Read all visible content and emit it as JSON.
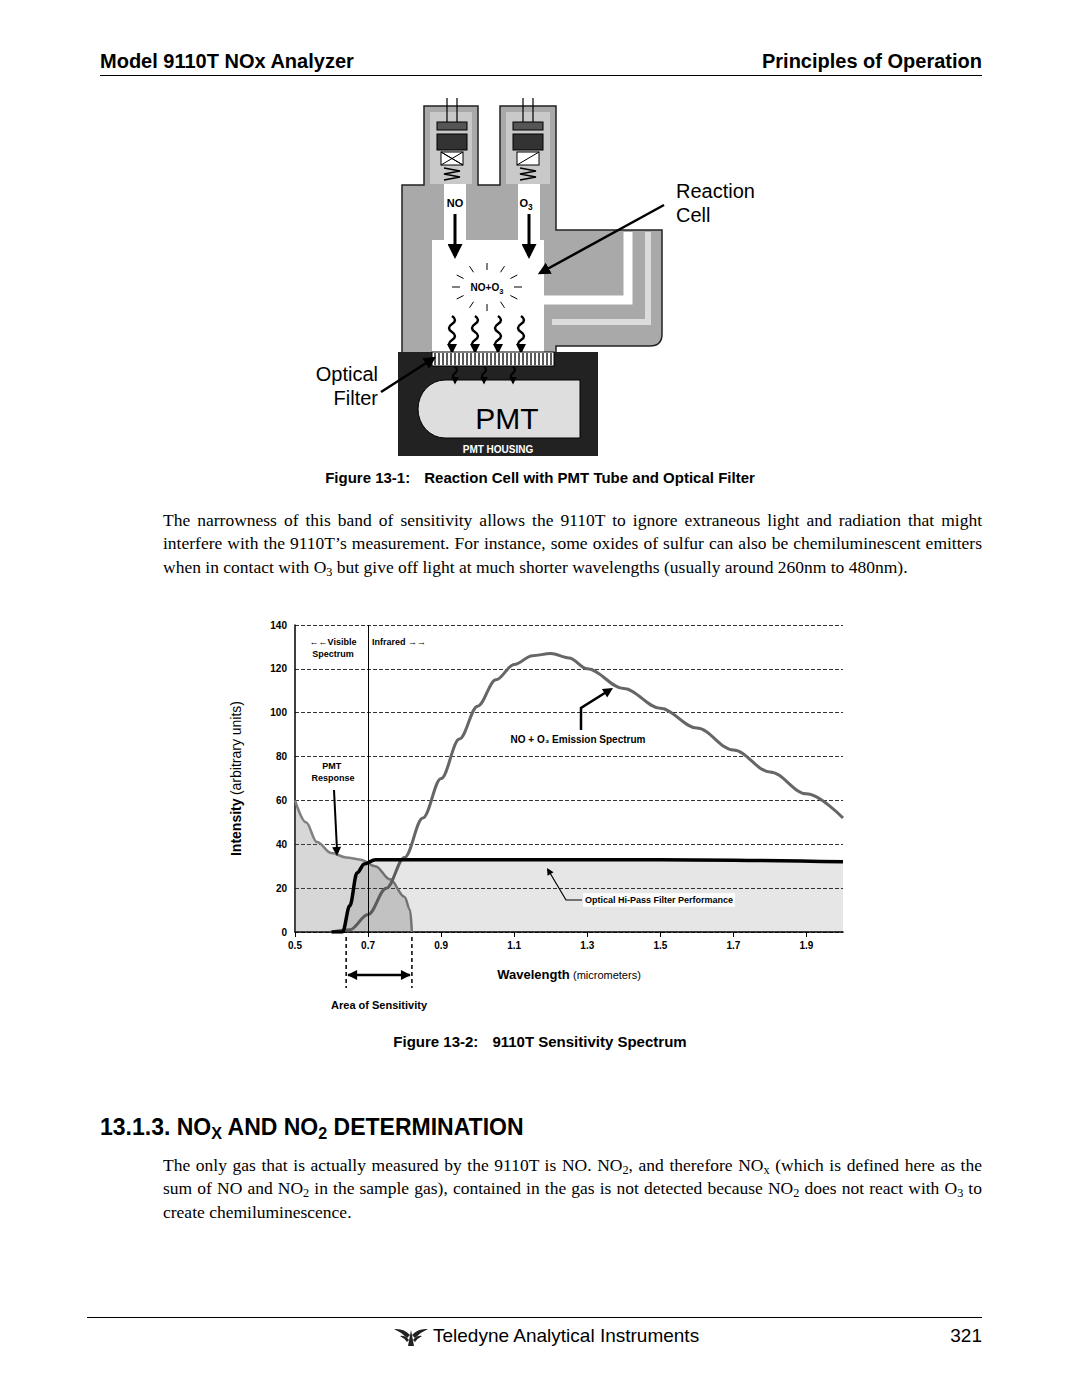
{
  "header": {
    "left": "Model 9110T NOx Analyzer",
    "right": "Principles of Operation"
  },
  "figure1": {
    "labels": {
      "no": [
        "NO"
      ],
      "o3": [
        "O",
        {
          "sub": "3"
        }
      ],
      "mix": [
        "NO+O",
        {
          "sub": "3"
        }
      ],
      "reaction_cell": [
        "Reaction",
        "Cell"
      ],
      "optical_filter": [
        "Optical",
        "Filter"
      ],
      "pmt": "PMT",
      "pmt_housing": "PMT HOUSING"
    },
    "caption": {
      "label": "Figure 13-1:",
      "text": "Reaction Cell with PMT Tube and Optical Filter"
    }
  },
  "paragraph1": [
    "The narrowness of this band of sensitivity allows the 9110T to ignore extraneous light and radiation that might interfere with the 9110T’s measurement.  For instance, some oxides of sulfur can also be chemiluminescent emitters when in contact with O",
    {
      "sub": "3"
    },
    " but give off light at much shorter wavelengths (usually around 260nm to 480nm)."
  ],
  "chart_data": {
    "type": "line",
    "xlabel": {
      "text": "Wavelength",
      "unit": "(micrometers)"
    },
    "ylabel": {
      "text": "Intensity",
      "unit": "(arbitrary units)"
    },
    "xlim": [
      0.5,
      2.0
    ],
    "xticks": [
      0.5,
      0.7,
      0.9,
      1.1,
      1.3,
      1.5,
      1.7,
      1.9
    ],
    "ylim": [
      0,
      140
    ],
    "yticks": [
      0,
      20,
      40,
      60,
      80,
      100,
      120,
      140
    ],
    "grid": true,
    "divider_x": 0.7,
    "annotations": [
      {
        "lines": [
          "←←Visible",
          "Spectrum"
        ]
      },
      {
        "lines": [
          "Infrared →→"
        ]
      }
    ],
    "area_of_sensitivity": {
      "text": "Area of Sensitivity",
      "range": [
        0.64,
        0.82
      ]
    },
    "series": [
      {
        "name": "PMT Response",
        "type": "area",
        "color": "#808080",
        "line_style": "solid",
        "x": [
          0.5,
          0.53,
          0.56,
          0.6,
          0.64,
          0.68,
          0.72,
          0.76,
          0.8,
          0.815,
          0.82
        ],
        "values": [
          60,
          50,
          41,
          36,
          34,
          33,
          30,
          24,
          16,
          10,
          0
        ]
      },
      {
        "name": "NO + O₃ Emission Spectrum",
        "type": "line",
        "color": "#666666",
        "line_style": "solid",
        "x": [
          0.6,
          0.65,
          0.7,
          0.75,
          0.8,
          0.85,
          0.9,
          0.95,
          1.0,
          1.05,
          1.1,
          1.15,
          1.2,
          1.25,
          1.3,
          1.4,
          1.5,
          1.6,
          1.7,
          1.8,
          1.9,
          2.0
        ],
        "values": [
          0,
          1,
          8,
          20,
          34,
          52,
          70,
          88,
          103,
          115,
          122,
          126,
          127,
          125,
          120,
          111,
          102,
          93,
          83,
          73,
          63,
          52
        ]
      },
      {
        "name": "Optical Hi-Pass Filter Performance",
        "type": "area",
        "color": "#000000",
        "line_style": "solid",
        "x": [
          0.6,
          0.63,
          0.65,
          0.67,
          0.69,
          0.72,
          0.8,
          1.0,
          1.5,
          2.0
        ],
        "values": [
          0,
          0,
          12,
          27,
          31,
          33,
          33,
          33,
          33,
          32
        ]
      }
    ]
  },
  "figure2": {
    "caption": {
      "label": "Figure 13-2:",
      "text": "9110T Sensitivity Spectrum"
    }
  },
  "section": {
    "heading": [
      "13.1.3. NO",
      {
        "sub": "X"
      },
      " AND NO",
      {
        "sub": "2"
      },
      " DETERMINATION"
    ],
    "paragraph": [
      "The only gas that is actually measured by the 9110T is NO.  NO",
      {
        "sub": "2"
      },
      ", and therefore NO",
      {
        "sub": "x"
      },
      " (which is defined here as the sum of NO and NO",
      {
        "sub": "2"
      },
      " in the sample gas), contained in the gas is not detected because NO",
      {
        "sub": "2"
      },
      " does not react with O",
      {
        "sub": "3"
      },
      " to create chemiluminescence."
    ]
  },
  "footer": {
    "company": "Teledyne Analytical Instruments",
    "page": 321
  }
}
